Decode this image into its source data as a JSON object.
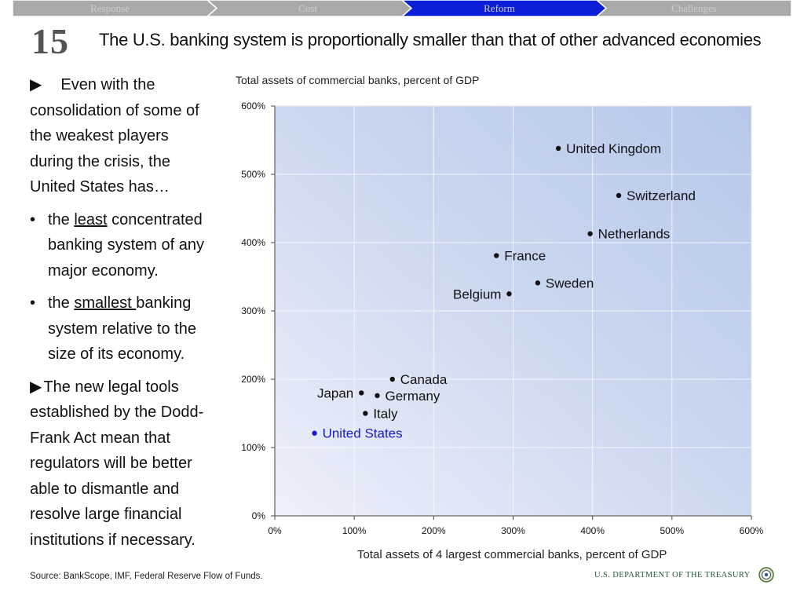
{
  "nav": {
    "tabs": [
      {
        "label": "Response",
        "active": false
      },
      {
        "label": "Cost",
        "active": false
      },
      {
        "label": "Reform",
        "active": true
      },
      {
        "label": "Challenges",
        "active": false
      }
    ],
    "active_color": "#0a1fd6",
    "inactive_color": "#a9a9a9"
  },
  "slide": {
    "number": "15",
    "title": "The U.S. banking system is proportionally smaller than that of other advanced economies"
  },
  "bullets": {
    "intro": "Even with the consolidation of some of the weakest players during the crisis, the United States has…",
    "item1_pre": "the ",
    "item1_u": "least",
    "item1_post": " concentrated banking system of any major economy.",
    "item2_pre": "the ",
    "item2_u": "smallest ",
    "item2_post": "banking system relative to the size of its economy.",
    "closing": "The new legal tools established by the Dodd-Frank Act mean that regulators will be better able to dismantle and resolve large financial institutions if necessary."
  },
  "chart_data": {
    "type": "scatter",
    "title": "Total assets of commercial banks, percent of GDP",
    "xlabel": "Total assets of 4 largest commercial banks, percent of GDP",
    "ylabel": "Total assets of commercial banks, percent of GDP",
    "xlim": [
      0,
      600
    ],
    "ylim": [
      0,
      600
    ],
    "x_ticks": [
      "0%",
      "100%",
      "200%",
      "300%",
      "400%",
      "500%",
      "600%"
    ],
    "y_ticks": [
      "0%",
      "100%",
      "200%",
      "300%",
      "400%",
      "500%",
      "600%"
    ],
    "grid": true,
    "highlight_color": "#1a1acc",
    "points": [
      {
        "label": "United Kingdom",
        "x": 357,
        "y": 538,
        "label_side": "right"
      },
      {
        "label": "Switzerland",
        "x": 433,
        "y": 469,
        "label_side": "right"
      },
      {
        "label": "Netherlands",
        "x": 397,
        "y": 413,
        "label_side": "right"
      },
      {
        "label": "France",
        "x": 279,
        "y": 381,
        "label_side": "right"
      },
      {
        "label": "Sweden",
        "x": 331,
        "y": 341,
        "label_side": "right"
      },
      {
        "label": "Belgium",
        "x": 295,
        "y": 325,
        "label_side": "left"
      },
      {
        "label": "Canada",
        "x": 148,
        "y": 200,
        "label_side": "right"
      },
      {
        "label": "Japan",
        "x": 109,
        "y": 180,
        "label_side": "left"
      },
      {
        "label": "Germany",
        "x": 129,
        "y": 176,
        "label_side": "right"
      },
      {
        "label": "Italy",
        "x": 114,
        "y": 150,
        "label_side": "right"
      },
      {
        "label": "United States",
        "x": 50,
        "y": 121,
        "label_side": "right",
        "highlight": true
      }
    ]
  },
  "source": "Source: BankScope, IMF, Federal Reserve Flow of Funds.",
  "agency": "U.S. DEPARTMENT OF THE TREASURY"
}
